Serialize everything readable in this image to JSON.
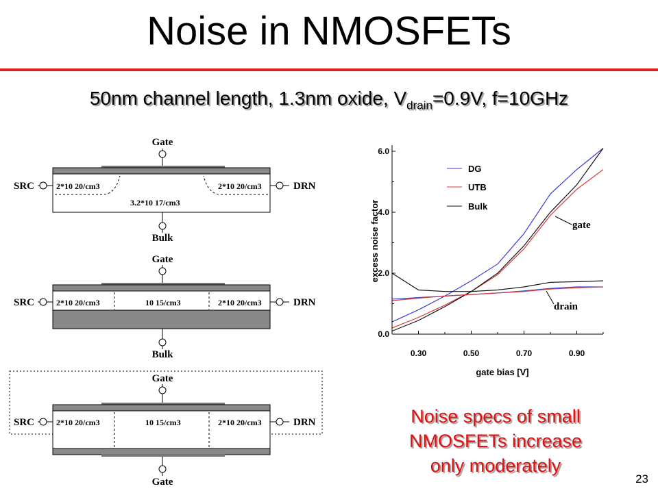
{
  "slide": {
    "title": "Noise in NMOSFETs",
    "subtitle_main": "50nm channel length, 1.3nm oxide, V",
    "subtitle_sub": "drain",
    "subtitle_rest": "=0.9V, f=10GHz",
    "note_lines": [
      "Noise specs of small",
      "NMOSFETs increase",
      "only moderately"
    ],
    "page_number": "23",
    "accent_color": "#d91f1f",
    "note_color": "#e01010"
  },
  "diagrams": {
    "bulk": {
      "top_terminal": "Gate",
      "bottom_terminal": "Bulk",
      "source": "SRC",
      "drain": "DRN",
      "left_doping": "2*10 20/cm3",
      "right_doping": "2*10 20/cm3",
      "channel_doping": "3.2*10 17/cm3"
    },
    "utb": {
      "top_terminal": "Gate",
      "bottom_terminal": "Bulk",
      "source": "SRC",
      "drain": "DRN",
      "left_doping": "2*10 20/cm3",
      "right_doping": "2*10 20/cm3",
      "channel_doping": "10 15/cm3"
    },
    "dg": {
      "top_terminal": "Gate",
      "bottom_terminal": "Gate",
      "source": "SRC",
      "drain": "DRN",
      "left_doping": "2*10 20/cm3",
      "right_doping": "2*10 20/cm3",
      "channel_doping": "10 15/cm3"
    }
  },
  "chart_data": {
    "type": "line",
    "xlabel": "gate bias  [V]",
    "ylabel": "excess noise factor",
    "xlim": [
      0.2,
      1.0
    ],
    "ylim": [
      0.0,
      6.2
    ],
    "xticks": [
      "0.30",
      "0.50",
      "0.70",
      "0.90"
    ],
    "yticks": [
      "0.0",
      "2.0",
      "4.0",
      "6.0"
    ],
    "legend_position": "top-left",
    "annotations": [
      "gate",
      "drain"
    ],
    "series": [
      {
        "name": "DG",
        "noise": "gate",
        "color": "#3a3ad8",
        "x": [
          0.2,
          0.3,
          0.4,
          0.5,
          0.6,
          0.7,
          0.8,
          0.9,
          1.0
        ],
        "y": [
          0.4,
          0.8,
          1.25,
          1.75,
          2.3,
          3.3,
          4.6,
          5.4,
          6.1
        ]
      },
      {
        "name": "UTB",
        "noise": "gate",
        "color": "#d83a3a",
        "x": [
          0.2,
          0.3,
          0.4,
          0.5,
          0.6,
          0.7,
          0.8,
          0.9,
          1.0
        ],
        "y": [
          0.2,
          0.55,
          0.95,
          1.4,
          1.95,
          2.8,
          3.9,
          4.75,
          5.4
        ]
      },
      {
        "name": "Bulk",
        "noise": "gate",
        "color": "#111111",
        "x": [
          0.2,
          0.3,
          0.4,
          0.5,
          0.6,
          0.7,
          0.8,
          0.9,
          1.0
        ],
        "y": [
          0.1,
          0.45,
          0.9,
          1.4,
          2.0,
          2.9,
          4.0,
          4.9,
          6.1
        ]
      },
      {
        "name": "DG",
        "noise": "drain",
        "color": "#3a3ad8",
        "x": [
          0.2,
          0.3,
          0.4,
          0.5,
          0.6,
          0.7,
          0.8,
          0.9,
          1.0
        ],
        "y": [
          1.15,
          1.2,
          1.25,
          1.3,
          1.35,
          1.42,
          1.5,
          1.55,
          1.55
        ]
      },
      {
        "name": "UTB",
        "noise": "drain",
        "color": "#d83a3a",
        "x": [
          0.2,
          0.3,
          0.4,
          0.5,
          0.6,
          0.7,
          0.8,
          0.9,
          1.0
        ],
        "y": [
          1.1,
          1.18,
          1.25,
          1.3,
          1.35,
          1.4,
          1.48,
          1.52,
          1.55
        ]
      },
      {
        "name": "Bulk",
        "noise": "drain",
        "color": "#111111",
        "x": [
          0.2,
          0.3,
          0.4,
          0.5,
          0.6,
          0.7,
          0.8,
          0.9,
          1.0
        ],
        "y": [
          2.0,
          1.45,
          1.4,
          1.4,
          1.45,
          1.55,
          1.7,
          1.72,
          1.75
        ]
      }
    ]
  }
}
